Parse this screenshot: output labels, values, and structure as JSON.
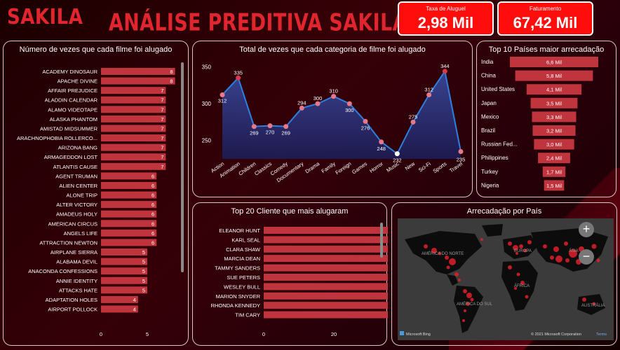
{
  "header": {
    "logo": "SAKILA",
    "title": "ANÁLISE PREDITIVA SAKILA"
  },
  "kpis": [
    {
      "label": "Taxa de Aluguel",
      "value": "2,98 Mil"
    },
    {
      "label": "Faturamento",
      "value": "67,42 Mil"
    }
  ],
  "colors": {
    "bar": "#c0343d",
    "accent": "#ff0d0d",
    "line": "#2d7fe0",
    "point": "#e6788a"
  },
  "chart_data": [
    {
      "type": "bar",
      "orientation": "horizontal",
      "title": "Número de vezes que cada filme foi alugado",
      "categories": [
        "ACADEMY DINOSAUR",
        "APACHE DIVINE",
        "AFFAIR PREJUDICE",
        "ALADDIN CALENDAR",
        "ALAMO VIDEOTAPE",
        "ALASKA PHANTOM",
        "AMISTAD MIDSUMMER",
        "ARACHNOPHOBIA ROLLERCO...",
        "ARIZONA BANG",
        "ARMAGEDDON LOST",
        "ATLANTIS CAUSE",
        "AGENT TRUMAN",
        "ALIEN CENTER",
        "ALONE TRIP",
        "ALTER VICTORY",
        "AMADEUS HOLY",
        "AMERICAN CIRCUS",
        "ANGELS LIFE",
        "ATTRACTION NEWTON",
        "AIRPLANE SIERRA",
        "ALABAMA DEVIL",
        "ANACONDA CONFESSIONS",
        "ANNIE IDENTITY",
        "ATTACKS HATE",
        "ADAPTATION HOLES",
        "AIRPORT POLLOCK"
      ],
      "values": [
        8,
        8,
        7,
        7,
        7,
        7,
        7,
        7,
        7,
        7,
        7,
        6,
        6,
        6,
        6,
        6,
        6,
        6,
        6,
        5,
        5,
        5,
        5,
        5,
        4,
        4
      ],
      "xticks": [
        "0",
        "5"
      ],
      "xlim": [
        0,
        8.5
      ]
    },
    {
      "type": "area",
      "title": "Total de vezes que cada categoria de filme foi alugado",
      "categories": [
        "Action",
        "Animation",
        "Children",
        "Classics",
        "Comedy",
        "Documentary",
        "Drama",
        "Family",
        "Foreign",
        "Games",
        "Horror",
        "Music",
        "New",
        "Sci-Fi",
        "Sports",
        "Travel"
      ],
      "values": [
        312,
        335,
        269,
        270,
        269,
        294,
        300,
        310,
        300,
        276,
        248,
        232,
        275,
        312,
        344,
        235
      ],
      "yticks": [
        "350",
        "300",
        "250"
      ],
      "ylim": [
        225,
        360
      ]
    },
    {
      "type": "bar",
      "orientation": "horizontal",
      "style": "funnel",
      "title": "Top 10 Países maior arrecadação",
      "categories": [
        "India",
        "China",
        "United States",
        "Japan",
        "Mexico",
        "Brazil",
        "Russian Fed...",
        "Philippines",
        "Turkey",
        "Nigeria"
      ],
      "values": [
        6.6,
        5.8,
        4.1,
        3.5,
        3.3,
        3.2,
        3.0,
        2.4,
        1.7,
        1.5
      ],
      "value_labels": [
        "6,6 Mil",
        "5,8 Mil",
        "4,1 Mil",
        "3,5 Mil",
        "3,3 Mil",
        "3,2 Mil",
        "3,0 Mil",
        "2,4 Mil",
        "1,7 Mil",
        "1,5 Mil"
      ]
    },
    {
      "type": "bar",
      "orientation": "horizontal",
      "title": "Top 20 Cliente que mais alugaram",
      "categories": [
        "ELEANOR HUNT",
        "KARL SEAL",
        "CLARA SHAW",
        "MARCIA DEAN",
        "TAMMY SANDERS",
        "SUE PETERS",
        "WESLEY BULL",
        "MARION SNYDER",
        "RHONDA KENNEDY",
        "TIM CARY"
      ],
      "values": [
        46,
        45,
        42,
        42,
        41,
        40,
        40,
        39,
        39,
        39
      ],
      "xticks": [
        "0",
        "20",
        "40"
      ],
      "xlim": [
        0,
        48
      ]
    }
  ],
  "map": {
    "title": "Arrecadação por País",
    "labels": [
      "AMÉRICA DO NORTE",
      "EUROPA",
      "ÁSIA",
      "ÁFRICA",
      "AMÉRICA DO SUL",
      "AUSTRÁLIA"
    ],
    "attribution_left": "Microsoft Bing",
    "attribution_right": "© 2021 Microsoft Corporation",
    "terms": "Terms",
    "zoom_in": "+",
    "zoom_out": "−"
  }
}
